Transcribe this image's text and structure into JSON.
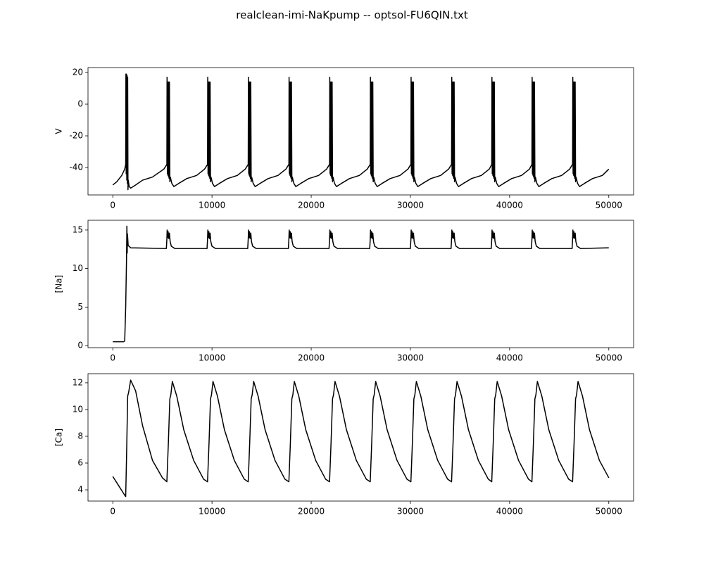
{
  "title": "realclean-imi-NaKpump -- optsol-FU6QIN.txt",
  "chart_data": [
    {
      "type": "line",
      "ylabel": "V",
      "xlim": [
        -2500,
        52500
      ],
      "ylim": [
        -57.3,
        23.1
      ],
      "xticks": [
        0,
        10000,
        20000,
        30000,
        40000,
        50000
      ],
      "yticks": [
        -40,
        -20,
        0,
        20
      ],
      "x": [
        0,
        400,
        900,
        1200,
        1300,
        1320,
        1350,
        1380,
        1410,
        1440,
        1470,
        1500,
        1530,
        1560,
        1650,
        1800,
        2300,
        3000,
        4000,
        5150,
        5450,
        5470,
        5500,
        5530,
        5560,
        5590,
        5620,
        5650,
        5680,
        5710,
        5750,
        5800,
        5950,
        6150,
        6650,
        7450,
        8450,
        9250,
        9550,
        9570,
        9600,
        9630,
        9660,
        9690,
        9720,
        9750,
        9780,
        9810,
        9850,
        9900,
        10050,
        10250,
        10750,
        11550,
        12550,
        13350,
        13650,
        13670,
        13700,
        13730,
        13760,
        13790,
        13820,
        13850,
        13880,
        13910,
        13950,
        14000,
        14150,
        14350,
        14850,
        15650,
        16650,
        17450,
        17750,
        17770,
        17800,
        17830,
        17860,
        17890,
        17920,
        17950,
        17980,
        18010,
        18050,
        18100,
        18250,
        18450,
        18950,
        19750,
        20750,
        21550,
        21850,
        21870,
        21900,
        21930,
        21960,
        21990,
        22020,
        22050,
        22080,
        22110,
        22150,
        22200,
        22350,
        22550,
        23050,
        23850,
        24850,
        25650,
        25950,
        25970,
        26000,
        26030,
        26060,
        26090,
        26120,
        26150,
        26180,
        26210,
        26250,
        26300,
        26450,
        26650,
        27150,
        27950,
        28950,
        29750,
        30050,
        30070,
        30100,
        30130,
        30160,
        30190,
        30220,
        30250,
        30280,
        30310,
        30350,
        30400,
        30550,
        30750,
        31250,
        32050,
        33050,
        33850,
        34150,
        34170,
        34200,
        34230,
        34260,
        34290,
        34320,
        34350,
        34380,
        34410,
        34450,
        34500,
        34650,
        34850,
        35350,
        36150,
        37150,
        37950,
        38200,
        38220,
        38250,
        38280,
        38310,
        38340,
        38370,
        38400,
        38430,
        38460,
        38500,
        38550,
        38700,
        38900,
        39400,
        40200,
        41200,
        42000,
        42250,
        42270,
        42300,
        42330,
        42360,
        42390,
        42420,
        42450,
        42480,
        42510,
        42550,
        42600,
        42750,
        42950,
        43450,
        44250,
        45250,
        46050,
        46350,
        46370,
        46400,
        46430,
        46460,
        46490,
        46520,
        46550,
        46580,
        46610,
        46650,
        46700,
        46850,
        47050,
        47550,
        48350,
        49350,
        50000
      ],
      "series": [
        {
          "color": "#000000",
          "values": [
            -51,
            -49,
            -45,
            -41,
            -38,
            19,
            -44,
            19,
            -48,
            18,
            -50,
            17,
            -54,
            -48,
            -52,
            -53,
            -51,
            -48,
            -46,
            -41,
            -38,
            17,
            -44,
            14,
            -45,
            14,
            -46,
            14,
            -47,
            14,
            -49,
            -46,
            -50,
            -52,
            -50,
            -47,
            -45,
            -41,
            -38,
            17,
            -44,
            14,
            -45,
            14,
            -46,
            14,
            -47,
            14,
            -49,
            -46,
            -50,
            -52,
            -50,
            -47,
            -45,
            -41,
            -38,
            17,
            -44,
            14,
            -45,
            14,
            -46,
            14,
            -47,
            14,
            -49,
            -46,
            -50,
            -52,
            -50,
            -47,
            -45,
            -41,
            -38,
            17,
            -44,
            14,
            -45,
            14,
            -46,
            14,
            -47,
            14,
            -49,
            -46,
            -50,
            -52,
            -50,
            -47,
            -45,
            -41,
            -38,
            17,
            -44,
            14,
            -45,
            14,
            -46,
            14,
            -47,
            14,
            -49,
            -46,
            -50,
            -52,
            -50,
            -47,
            -45,
            -41,
            -38,
            17,
            -44,
            14,
            -45,
            14,
            -46,
            14,
            -47,
            14,
            -49,
            -46,
            -50,
            -52,
            -50,
            -47,
            -45,
            -41,
            -38,
            17,
            -44,
            14,
            -45,
            14,
            -46,
            14,
            -47,
            14,
            -49,
            -46,
            -50,
            -52,
            -50,
            -47,
            -45,
            -41,
            -38,
            17,
            -44,
            14,
            -45,
            14,
            -46,
            14,
            -47,
            14,
            -49,
            -46,
            -50,
            -52,
            -50,
            -47,
            -45,
            -41,
            -38,
            17,
            -44,
            14,
            -45,
            14,
            -46,
            14,
            -47,
            14,
            -49,
            -46,
            -50,
            -52,
            -50,
            -47,
            -45,
            -41,
            -38,
            17,
            -44,
            14,
            -45,
            14,
            -46,
            14,
            -47,
            14,
            -49,
            -46,
            -50,
            -52,
            -50,
            -47,
            -45,
            -41,
            -38,
            17,
            -44,
            14,
            -45,
            14,
            -46,
            14,
            -47,
            14,
            -49,
            -46,
            -50,
            -52,
            -50,
            -47,
            -45,
            -41
          ]
        }
      ]
    },
    {
      "type": "line",
      "ylabel": "[Na]",
      "xlim": [
        -2500,
        52500
      ],
      "ylim": [
        -0.27,
        16.27
      ],
      "xticks": [
        0,
        10000,
        20000,
        30000,
        40000,
        50000
      ],
      "yticks": [
        0,
        5,
        10,
        15
      ],
      "x": [
        0,
        1100,
        1200,
        1300,
        1380,
        1420,
        1450,
        1480,
        1550,
        1800,
        5400,
        5450,
        5480,
        5530,
        5580,
        5650,
        5710,
        5780,
        5900,
        6250,
        9500,
        9550,
        9580,
        9630,
        9680,
        9750,
        9810,
        9880,
        10000,
        10350,
        13600,
        13650,
        13680,
        13730,
        13780,
        13850,
        13910,
        13980,
        14100,
        14450,
        17700,
        17750,
        17780,
        17830,
        17880,
        17950,
        18010,
        18080,
        18200,
        18550,
        21800,
        21850,
        21880,
        21930,
        21980,
        22050,
        22110,
        22180,
        22300,
        22650,
        25900,
        25950,
        25980,
        26030,
        26080,
        26150,
        26210,
        26280,
        26400,
        26750,
        30000,
        30050,
        30080,
        30130,
        30180,
        30250,
        30310,
        30380,
        30500,
        30850,
        34100,
        34150,
        34180,
        34230,
        34280,
        34350,
        34410,
        34480,
        34600,
        34950,
        38150,
        38200,
        38230,
        38280,
        38330,
        38400,
        38460,
        38530,
        38650,
        39000,
        42200,
        42250,
        42280,
        42330,
        42380,
        42450,
        42510,
        42580,
        42700,
        43050,
        46300,
        46350,
        46380,
        46430,
        46480,
        46550,
        46610,
        46680,
        46800,
        47150,
        50000
      ],
      "series": [
        {
          "color": "#000000",
          "values": [
            0.5,
            0.5,
            0.6,
            5,
            11,
            15.5,
            12,
            14.5,
            13,
            12.7,
            12.6,
            13.8,
            15,
            14,
            14.8,
            13.9,
            14.6,
            13.5,
            12.9,
            12.6,
            12.6,
            13.8,
            15,
            14,
            14.8,
            13.9,
            14.6,
            13.5,
            12.9,
            12.6,
            12.6,
            13.8,
            15,
            14,
            14.8,
            13.9,
            14.6,
            13.5,
            12.9,
            12.6,
            12.6,
            13.8,
            15,
            14,
            14.8,
            13.9,
            14.6,
            13.5,
            12.9,
            12.6,
            12.6,
            13.8,
            15,
            14,
            14.8,
            13.9,
            14.6,
            13.5,
            12.9,
            12.6,
            12.6,
            13.8,
            15,
            14,
            14.8,
            13.9,
            14.6,
            13.5,
            12.9,
            12.6,
            12.6,
            13.8,
            15,
            14,
            14.8,
            13.9,
            14.6,
            13.5,
            12.9,
            12.6,
            12.6,
            13.8,
            15,
            14,
            14.8,
            13.9,
            14.6,
            13.5,
            12.9,
            12.6,
            12.6,
            13.8,
            15,
            14,
            14.8,
            13.9,
            14.6,
            13.5,
            12.9,
            12.6,
            12.6,
            13.8,
            15,
            14,
            14.8,
            13.9,
            14.6,
            13.5,
            12.9,
            12.6,
            12.6,
            13.8,
            15,
            14,
            14.8,
            13.9,
            14.6,
            13.5,
            12.9,
            12.6,
            12.7
          ]
        }
      ]
    },
    {
      "type": "line",
      "ylabel": "[Ca]",
      "xlim": [
        -2500,
        52500
      ],
      "ylim": [
        3.16,
        12.68
      ],
      "xticks": [
        0,
        10000,
        20000,
        30000,
        40000,
        50000
      ],
      "yticks": [
        4,
        6,
        8,
        10,
        12
      ],
      "x": [
        0,
        600,
        1200,
        1300,
        1400,
        1500,
        1600,
        1800,
        2300,
        3000,
        4000,
        5000,
        5450,
        5600,
        5750,
        5850,
        6000,
        6450,
        7150,
        8150,
        9150,
        9550,
        9700,
        9850,
        9950,
        10100,
        10550,
        11250,
        12250,
        13250,
        13650,
        13800,
        13950,
        14050,
        14200,
        14650,
        15350,
        16350,
        17350,
        17750,
        17900,
        18050,
        18150,
        18300,
        18750,
        19450,
        20450,
        21450,
        21850,
        22000,
        22150,
        22250,
        22400,
        22850,
        23550,
        24550,
        25550,
        25950,
        26100,
        26250,
        26350,
        26500,
        26950,
        27650,
        28650,
        29650,
        30050,
        30200,
        30350,
        30450,
        30600,
        31050,
        31750,
        32750,
        33750,
        34150,
        34300,
        34450,
        34550,
        34700,
        35150,
        35850,
        36850,
        37850,
        38200,
        38350,
        38500,
        38600,
        38750,
        39200,
        39900,
        40900,
        41900,
        42250,
        42400,
        42550,
        42650,
        42800,
        43250,
        43950,
        44950,
        45950,
        46350,
        46500,
        46650,
        46750,
        46900,
        47350,
        48050,
        49050,
        50000
      ],
      "series": [
        {
          "color": "#000000",
          "values": [
            5.0,
            4.3,
            3.6,
            3.5,
            7,
            11,
            11.3,
            12.2,
            11.4,
            8.8,
            6.2,
            4.9,
            4.6,
            7.5,
            10.8,
            11.1,
            12.1,
            11.0,
            8.5,
            6.2,
            4.8,
            4.6,
            7.5,
            10.8,
            11.1,
            12.1,
            11.0,
            8.5,
            6.2,
            4.8,
            4.6,
            7.5,
            10.8,
            11.1,
            12.1,
            11.0,
            8.5,
            6.2,
            4.8,
            4.6,
            7.5,
            10.8,
            11.1,
            12.1,
            11.0,
            8.5,
            6.2,
            4.8,
            4.6,
            7.5,
            10.8,
            11.1,
            12.1,
            11.0,
            8.5,
            6.2,
            4.8,
            4.6,
            7.5,
            10.8,
            11.1,
            12.1,
            11.0,
            8.5,
            6.2,
            4.8,
            4.6,
            7.5,
            10.8,
            11.1,
            12.1,
            11.0,
            8.5,
            6.2,
            4.8,
            4.6,
            7.5,
            10.8,
            11.1,
            12.1,
            11.0,
            8.5,
            6.2,
            4.8,
            4.6,
            7.5,
            10.8,
            11.1,
            12.1,
            11.0,
            8.5,
            6.2,
            4.8,
            4.6,
            7.5,
            10.8,
            11.1,
            12.1,
            11.0,
            8.5,
            6.2,
            4.8,
            4.6,
            7.5,
            10.8,
            11.1,
            12.1,
            11.0,
            8.5,
            6.2,
            4.9
          ]
        }
      ]
    }
  ]
}
